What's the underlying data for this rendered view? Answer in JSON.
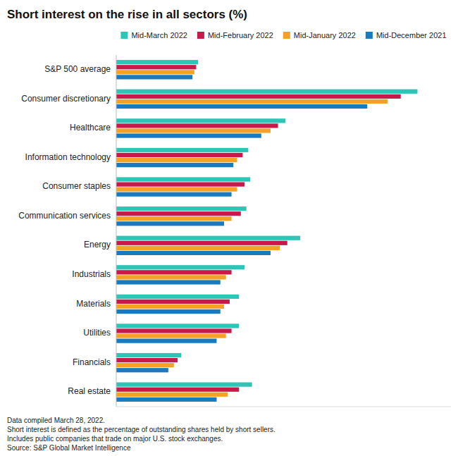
{
  "chart_data": {
    "type": "bar",
    "orientation": "horizontal",
    "title": "Short interest on the rise in all sectors (%)",
    "footnote": "Data compiled March 28, 2022.\nShort interest is defined as the percentage of outstanding shares held by short sellers.\nIncludes public companies that trade on major U.S. stock exchanges.\nSource: S&P Global Market Intelligence",
    "categories": [
      "S&P 500 average",
      "Consumer discretionary",
      "Healthcare",
      "Information technology",
      "Consumer staples",
      "Communication services",
      "Energy",
      "Industrials",
      "Materials",
      "Utilities",
      "Financials",
      "Real estate"
    ],
    "series": [
      {
        "name": "Mid-March 2022",
        "color": "#2ec4b6",
        "values": [
          2.2,
          8.1,
          4.55,
          3.55,
          3.6,
          3.5,
          4.95,
          3.45,
          3.3,
          3.3,
          1.75,
          3.65
        ]
      },
      {
        "name": "Mid-February 2022",
        "color": "#c9184a",
        "values": [
          2.15,
          7.65,
          4.35,
          3.4,
          3.45,
          3.35,
          4.6,
          3.1,
          3.05,
          3.1,
          1.65,
          3.3
        ]
      },
      {
        "name": "Mid-January 2022",
        "color": "#f4a223",
        "values": [
          2.1,
          7.3,
          4.15,
          3.25,
          3.25,
          3.1,
          4.4,
          2.95,
          2.9,
          2.95,
          1.55,
          3.0
        ]
      },
      {
        "name": "Mid-December 2021",
        "color": "#1a7abf",
        "values": [
          2.05,
          6.75,
          3.9,
          3.15,
          3.1,
          2.9,
          4.15,
          2.8,
          2.8,
          2.7,
          1.4,
          2.7
        ]
      }
    ],
    "xlim": [
      0,
      9.0
    ],
    "legend": "top",
    "tick_labels": "y",
    "grid": false
  }
}
